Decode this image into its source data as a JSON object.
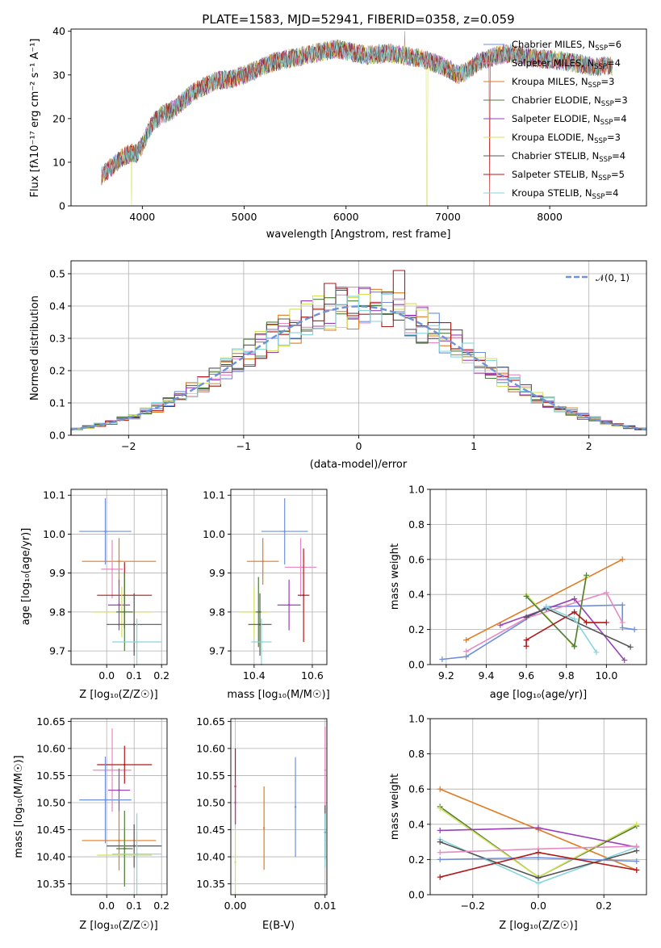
{
  "colors": {
    "chabrier_miles": "#6f8fdc",
    "salpeter_miles": "#e78ac3",
    "kroupa_miles": "#e07b22",
    "chabrier_elodie": "#4f7d3c",
    "salpeter_elodie": "#9b3fb8",
    "kroupa_elodie": "#d4e15a",
    "chabrier_stelib": "#555555",
    "salpeter_stelib": "#b01a1a",
    "kroupa_stelib": "#86d6dc",
    "normal_curve": "#6f93d6"
  },
  "chart_data": [
    {
      "id": "spectrum",
      "type": "line",
      "title": "PLATE=1583, MJD=52941, FIBERID=0358, z=0.059",
      "xlabel": "wavelength [Angstrom, rest frame]",
      "ylabel": "Flux [fλ10⁻¹⁷ erg cm⁻² s⁻¹ A⁻¹]",
      "xlim": [
        3300,
        8950
      ],
      "ylim": [
        0,
        40.5
      ],
      "xticks": [
        "4000",
        "5000",
        "6000",
        "7000",
        "8000"
      ],
      "yticks": [
        "0",
        "10",
        "20",
        "30",
        "40"
      ],
      "grid": false,
      "legend_position": "right",
      "legend": [
        {
          "label": "Chabrier MILES, N",
          "sub": "SSP",
          "suffix": "=6"
        },
        {
          "label": "Salpeter MILES, N",
          "sub": "SSP",
          "suffix": "=4"
        },
        {
          "label": "Kroupa MILES, N",
          "sub": "SSP",
          "suffix": "=3"
        },
        {
          "label": "Chabrier ELODIE, N",
          "sub": "SSP",
          "suffix": "=3"
        },
        {
          "label": "Salpeter ELODIE, N",
          "sub": "SSP",
          "suffix": "=4"
        },
        {
          "label": "Kroupa ELODIE, N",
          "sub": "SSP",
          "suffix": "=3"
        },
        {
          "label": "Chabrier STELIB, N",
          "sub": "SSP",
          "suffix": "=4"
        },
        {
          "label": "Salpeter STELIB, N",
          "sub": "SSP",
          "suffix": "=5"
        },
        {
          "label": "Kroupa STELIB, N",
          "sub": "SSP",
          "suffix": "=4"
        }
      ],
      "spectrum_anchors": {
        "x": [
          3600,
          3700,
          3800,
          3880,
          3950,
          4000,
          4100,
          4200,
          4300,
          4400,
          4500,
          4700,
          4860,
          5000,
          5100,
          5200,
          5300,
          5500,
          5700,
          5900,
          6000,
          6200,
          6400,
          6560,
          6700,
          6900,
          7000,
          7100,
          7200,
          7300,
          7500,
          7600,
          7800,
          8000,
          8200,
          8400,
          8600
        ],
        "y": [
          7,
          9,
          11,
          12,
          12,
          14,
          19,
          21,
          22,
          24,
          26,
          28.5,
          29,
          30,
          31,
          32,
          33,
          34,
          35,
          36,
          35.5,
          34.5,
          35,
          34.5,
          34,
          32.5,
          31.5,
          30,
          31,
          33,
          34.5,
          35,
          34,
          33.5,
          33,
          32,
          32
        ]
      }
    },
    {
      "id": "residuals",
      "type": "histogram",
      "xlabel": "(data-model)/error",
      "ylabel": "Normed distribution",
      "xlim": [
        -2.5,
        2.5
      ],
      "ylim": [
        0,
        0.54
      ],
      "xticks": [
        "−2",
        "−1",
        "0",
        "1",
        "2"
      ],
      "yticks": [
        "0.0",
        "0.1",
        "0.2",
        "0.3",
        "0.4",
        "0.5"
      ],
      "grid": true,
      "legend_position": "top-right",
      "legend": [
        {
          "label": "𝒩(0, 1)"
        }
      ],
      "bin_width": 0.1,
      "series_salpeter_stelib_bin_peaks": [
        0.47,
        0.51,
        0.48,
        0.44,
        0.44
      ],
      "curve": "normal(0,1) pdf"
    },
    {
      "id": "age_vs_z",
      "type": "scatter",
      "xlabel": "Z [log₁₀(Z/Z☉)]",
      "ylabel": "age  [log₁₀(age/yr)]",
      "xlim": [
        -0.13,
        0.22
      ],
      "ylim": [
        9.665,
        10.115
      ],
      "xticks": [
        "0.0",
        "0.1",
        "0.2"
      ],
      "yticks": [
        "9.7",
        "9.8",
        "9.9",
        "10.0",
        "10.1"
      ],
      "grid": true,
      "points": [
        {
          "series": "chabrier_miles",
          "x": -0.005,
          "xerr": 0.095,
          "y": 10.007,
          "yerr": 0.085
        },
        {
          "series": "kroupa_miles",
          "x": 0.045,
          "xerr": 0.135,
          "y": 9.93,
          "yerr": 0.06
        },
        {
          "series": "salpeter_miles",
          "x": 0.02,
          "xerr": 0.04,
          "y": 9.91,
          "yerr": 0.075
        },
        {
          "series": "salpeter_stelib",
          "x": 0.065,
          "xerr": 0.1,
          "y": 9.843,
          "yerr": 0.085
        },
        {
          "series": "salpeter_elodie",
          "x": 0.045,
          "xerr": 0.04,
          "y": 9.818,
          "yerr": 0.065
        },
        {
          "series": "kroupa_elodie",
          "x": 0.055,
          "xerr": 0.105,
          "y": 9.8,
          "yerr": 0.065
        },
        {
          "series": "chabrier_elodie",
          "x": 0.065,
          "xerr": 0.03,
          "y": 9.8,
          "yerr": 0.1
        },
        {
          "series": "chabrier_stelib",
          "x": 0.1,
          "xerr": 0.1,
          "y": 9.768,
          "yerr": 0.08
        },
        {
          "series": "kroupa_stelib",
          "x": 0.11,
          "xerr": 0.09,
          "y": 9.723,
          "yerr": 0.06
        }
      ]
    },
    {
      "id": "age_vs_mass",
      "type": "scatter",
      "xlabel": "mass [log₁₀(M/M☉)]",
      "ylabel": "",
      "xlim": [
        10.32,
        10.65
      ],
      "ylim": [
        9.665,
        10.115
      ],
      "xticks": [
        "10.4",
        "10.6"
      ],
      "yticks": [
        "9.7",
        "9.8",
        "9.9",
        "10.0",
        "10.1"
      ],
      "grid": true,
      "points": [
        {
          "series": "chabrier_miles",
          "x": 10.505,
          "xerr": 0.08,
          "y": 10.007,
          "yerr": 0.085
        },
        {
          "series": "kroupa_miles",
          "x": 10.43,
          "xerr": 0.055,
          "y": 9.93,
          "yerr": 0.06
        },
        {
          "series": "salpeter_miles",
          "x": 10.56,
          "xerr": 0.055,
          "y": 9.915,
          "yerr": 0.075
        },
        {
          "series": "salpeter_stelib",
          "x": 10.57,
          "xerr": 0.02,
          "y": 9.843,
          "yerr": 0.12
        },
        {
          "series": "salpeter_elodie",
          "x": 10.52,
          "xerr": 0.04,
          "y": 9.818,
          "yerr": 0.065
        },
        {
          "series": "kroupa_elodie",
          "x": 10.4,
          "xerr": 0.05,
          "y": 9.8,
          "yerr": 0.065
        },
        {
          "series": "chabrier_elodie",
          "x": 10.415,
          "xerr": 0.01,
          "y": 9.8,
          "yerr": 0.09
        },
        {
          "series": "chabrier_stelib",
          "x": 10.42,
          "xerr": 0.04,
          "y": 9.768,
          "yerr": 0.08
        },
        {
          "series": "kroupa_stelib",
          "x": 10.425,
          "xerr": 0.035,
          "y": 9.723,
          "yerr": 0.06
        }
      ]
    },
    {
      "id": "weight_vs_age",
      "type": "line",
      "xlabel": "age  [log₁₀(age/yr)]",
      "ylabel": "mass weight",
      "xlim": [
        9.12,
        10.2
      ],
      "ylim": [
        0,
        1.0
      ],
      "xticks": [
        "9.2",
        "9.4",
        "9.6",
        "9.8",
        "10.0"
      ],
      "yticks": [
        "0.0",
        "0.2",
        "0.4",
        "0.6",
        "0.8",
        "1.0"
      ],
      "grid": true,
      "series": [
        {
          "key": "chabrier_miles",
          "x": [
            9.18,
            9.3,
            9.7,
            10.08,
            10.08,
            10.14
          ],
          "y": [
            0.03,
            0.045,
            0.33,
            0.34,
            0.21,
            0.2
          ]
        },
        {
          "key": "kroupa_miles",
          "x": [
            9.3,
            10.08
          ],
          "y": [
            0.14,
            0.6
          ]
        },
        {
          "key": "salpeter_miles",
          "x": [
            9.3,
            9.6,
            10.0,
            10.08
          ],
          "y": [
            0.075,
            0.265,
            0.41,
            0.24
          ]
        },
        {
          "key": "salpeter_elodie",
          "x": [
            9.47,
            9.84,
            10.09
          ],
          "y": [
            0.225,
            0.375,
            0.025
          ]
        },
        {
          "key": "kroupa_elodie",
          "x": [
            9.6,
            9.84,
            9.9
          ],
          "y": [
            0.4,
            0.1,
            0.5
          ]
        },
        {
          "key": "chabrier_elodie",
          "x": [
            9.6,
            9.84,
            9.9
          ],
          "y": [
            0.39,
            0.105,
            0.51
          ]
        },
        {
          "key": "chabrier_stelib",
          "x": [
            9.6,
            9.7,
            10.12
          ],
          "y": [
            0.27,
            0.32,
            0.1
          ]
        },
        {
          "key": "salpeter_stelib",
          "x": [
            9.6,
            9.6,
            9.84,
            9.9,
            10.0
          ],
          "y": [
            0.105,
            0.14,
            0.3,
            0.24,
            0.24
          ]
        },
        {
          "key": "kroupa_stelib",
          "x": [
            9.7,
            9.84,
            9.95
          ],
          "y": [
            0.33,
            0.26,
            0.07
          ]
        }
      ]
    },
    {
      "id": "mass_vs_z",
      "type": "scatter",
      "xlabel": "Z [log₁₀(Z/Z☉)]",
      "ylabel": "mass [log₁₀(M/M☉)]",
      "xlim": [
        -0.13,
        0.22
      ],
      "ylim": [
        10.33,
        10.655
      ],
      "xticks": [
        "0.0",
        "0.1",
        "0.2"
      ],
      "yticks": [
        "10.35",
        "10.40",
        "10.45",
        "10.50",
        "10.55",
        "10.60",
        "10.65"
      ],
      "grid": true,
      "points": [
        {
          "series": "salpeter_miles",
          "x": 0.02,
          "xerr": 0.07,
          "y": 10.56,
          "yerr": 0.077
        },
        {
          "series": "salpeter_stelib",
          "x": 0.065,
          "xerr": 0.1,
          "y": 10.57,
          "yerr": 0.035
        },
        {
          "series": "salpeter_elodie",
          "x": 0.045,
          "xerr": 0.04,
          "y": 10.523,
          "yerr": 0.04
        },
        {
          "series": "chabrier_miles",
          "x": -0.005,
          "xerr": 0.095,
          "y": 10.505,
          "yerr": 0.08
        },
        {
          "series": "kroupa_miles",
          "x": 0.045,
          "xerr": 0.135,
          "y": 10.43,
          "yerr": 0.055
        },
        {
          "series": "chabrier_stelib",
          "x": 0.1,
          "xerr": 0.1,
          "y": 10.42,
          "yerr": 0.04
        },
        {
          "series": "kroupa_elodie",
          "x": 0.065,
          "xerr": 0.1,
          "y": 10.403,
          "yerr": 0.05
        },
        {
          "series": "chabrier_elodie",
          "x": 0.065,
          "xerr": 0.03,
          "y": 10.415,
          "yerr": 0.07
        },
        {
          "series": "kroupa_stelib",
          "x": 0.11,
          "xerr": 0.09,
          "y": 10.405,
          "yerr": 0.075
        }
      ]
    },
    {
      "id": "mass_vs_ebv",
      "type": "scatter",
      "xlabel": "E(B-V)",
      "ylabel": "",
      "xlim": [
        -0.0005,
        0.0102
      ],
      "ylim": [
        10.33,
        10.655
      ],
      "xticks": [
        "0.00",
        "0.01"
      ],
      "yticks": [
        "10.35",
        "10.40",
        "10.45",
        "10.50",
        "10.55",
        "10.60",
        "10.65"
      ],
      "grid": true,
      "points": [
        {
          "series": "salpeter_stelib",
          "x": 0.0,
          "y": 10.53,
          "yerr": 0.07
        },
        {
          "series": "salpeter_elodie",
          "x": 0.0,
          "y": 10.5,
          "yerr": 0.04
        },
        {
          "series": "kroupa_elodie",
          "x": 0.0,
          "y": 10.39,
          "yerr": 0.06
        },
        {
          "series": "kroupa_miles",
          "x": 0.0032,
          "y": 10.453,
          "yerr": 0.077
        },
        {
          "series": "chabrier_miles",
          "x": 0.0067,
          "y": 10.492,
          "yerr": 0.092
        },
        {
          "series": "salpeter_miles",
          "x": 0.01,
          "y": 10.56,
          "yerr": 0.08
        },
        {
          "series": "chabrier_stelib",
          "x": 0.01,
          "y": 10.445,
          "yerr": 0.05
        },
        {
          "series": "kroupa_stelib",
          "x": 0.01,
          "y": 10.43,
          "yerr": 0.05
        }
      ]
    },
    {
      "id": "weight_vs_z",
      "type": "line",
      "xlabel": "Z [log₁₀(Z/Z☉)]",
      "ylabel": "mass weight",
      "xlim": [
        -0.33,
        0.33
      ],
      "ylim": [
        0,
        1.0
      ],
      "xticks": [
        "−0.2",
        "0.0",
        "0.2"
      ],
      "yticks": [
        "0.0",
        "0.2",
        "0.4",
        "0.6",
        "0.8",
        "1.0"
      ],
      "grid": true,
      "series": [
        {
          "key": "kroupa_miles",
          "x": [
            -0.3,
            0.0,
            0.3
          ],
          "y": [
            0.6,
            0.37,
            0.14
          ]
        },
        {
          "key": "chabrier_elodie",
          "x": [
            -0.3,
            0.0,
            0.3
          ],
          "y": [
            0.5,
            0.1,
            0.39
          ]
        },
        {
          "key": "kroupa_elodie",
          "x": [
            -0.3,
            0.0,
            0.3
          ],
          "y": [
            0.49,
            0.1,
            0.4
          ]
        },
        {
          "key": "salpeter_elodie",
          "x": [
            -0.3,
            0.0,
            0.3
          ],
          "y": [
            0.365,
            0.38,
            0.27
          ]
        },
        {
          "key": "kroupa_stelib",
          "x": [
            -0.3,
            0.0,
            0.3
          ],
          "y": [
            0.315,
            0.065,
            0.27
          ]
        },
        {
          "key": "chabrier_stelib",
          "x": [
            -0.3,
            0.0,
            0.3
          ],
          "y": [
            0.3,
            0.095,
            0.25
          ]
        },
        {
          "key": "salpeter_miles",
          "x": [
            -0.3,
            0.0,
            0.3
          ],
          "y": [
            0.24,
            0.26,
            0.275
          ]
        },
        {
          "key": "chabrier_miles",
          "x": [
            -0.3,
            0.0,
            0.3
          ],
          "y": [
            0.2,
            0.21,
            0.19
          ]
        },
        {
          "key": "salpeter_stelib",
          "x": [
            -0.3,
            0.0,
            0.3
          ],
          "y": [
            0.1,
            0.24,
            0.14
          ]
        }
      ]
    }
  ]
}
